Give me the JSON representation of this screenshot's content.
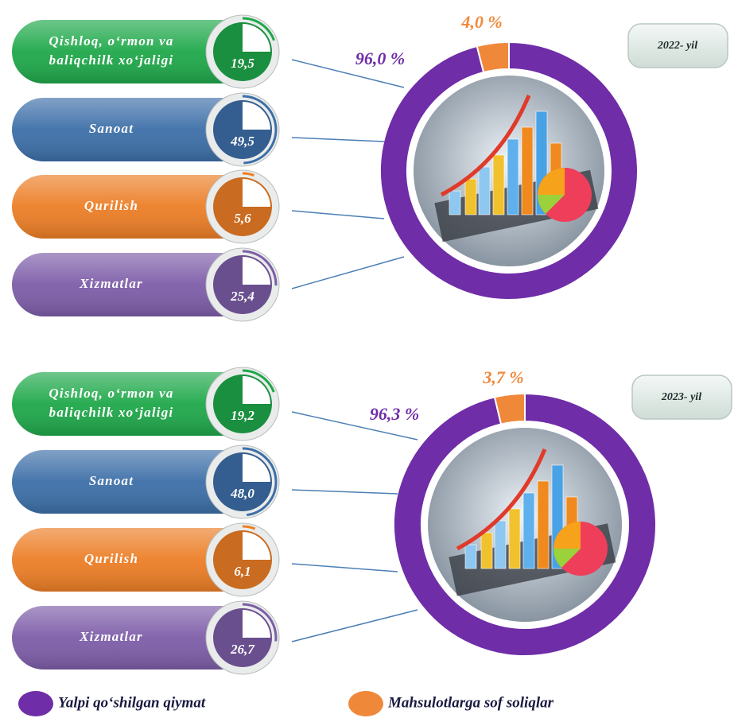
{
  "chart_data": [
    {
      "type": "pie",
      "title": "2022- yil",
      "values": [
        96.0,
        4.0
      ],
      "value_labels": [
        "96,0 %",
        "4,0 %"
      ],
      "colors": [
        "#6f2da8",
        "#f0883a"
      ],
      "sectors": {
        "categories": [
          [
            "Qishloq, o‘rmon va",
            "baliqchilk xo‘jaligi"
          ],
          [
            "Sanoat"
          ],
          [
            "Qurilish"
          ],
          [
            "Xizmatlar"
          ]
        ],
        "values": [
          19.5,
          49.5,
          5.6,
          25.4
        ],
        "value_labels": [
          "19,5",
          "49,5",
          "5,6",
          "25,4"
        ],
        "colors": [
          "#1fa84a",
          "#3d6fa8",
          "#ec7e26",
          "#7d5da8"
        ]
      }
    },
    {
      "type": "pie",
      "title": "2023- yil",
      "values": [
        96.3,
        3.7
      ],
      "value_labels": [
        "96,3 %",
        "3,7 %"
      ],
      "colors": [
        "#6f2da8",
        "#f0883a"
      ],
      "sectors": {
        "categories": [
          [
            "Qishloq, o‘rmon va",
            "baliqchilk xo‘jaligi"
          ],
          [
            "Sanoat"
          ],
          [
            "Qurilish"
          ],
          [
            "Xizmatlar"
          ]
        ],
        "values": [
          19.2,
          48.0,
          6.1,
          26.7
        ],
        "value_labels": [
          "19,2",
          "48,0",
          "6,1",
          "26,7"
        ],
        "colors": [
          "#1fa84a",
          "#3d6fa8",
          "#ec7e26",
          "#7d5da8"
        ]
      }
    }
  ],
  "legend": {
    "items": [
      {
        "name": "Yalpi qo‘shilgan qiymat",
        "color": "#6f2da8"
      },
      {
        "name": "Mahsulotlarga sof soliqlar",
        "color": "#f0883a"
      }
    ]
  }
}
